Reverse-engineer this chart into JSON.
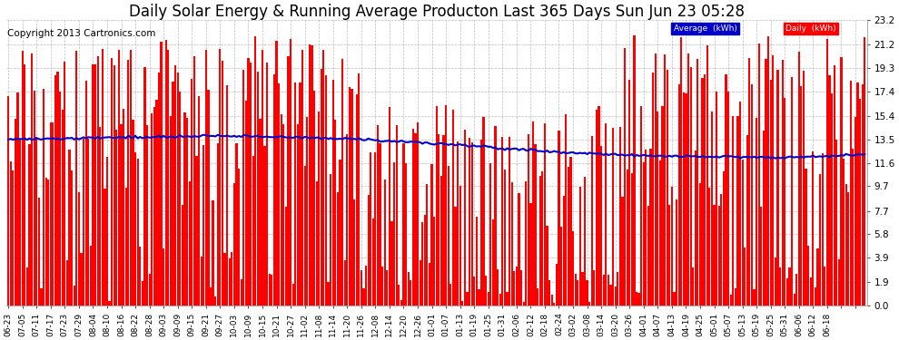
{
  "title": "Daily Solar Energy & Running Average Producton Last 365 Days Sun Jun 23 05:28",
  "copyright": "Copyright 2013 Cartronics.com",
  "legend_avg": "Average  (kWh)",
  "legend_daily": "Daily  (kWh)",
  "bar_color": "#ff0000",
  "avg_line_color": "#0000cd",
  "background_color": "#ffffff",
  "plot_bg_color": "#ffffff",
  "grid_color": "#aaaaaa",
  "ylim": [
    0.0,
    23.2
  ],
  "yticks": [
    0.0,
    1.9,
    3.9,
    5.8,
    7.7,
    9.7,
    11.6,
    13.5,
    15.4,
    17.4,
    19.3,
    21.2,
    23.2
  ],
  "title_fontsize": 12,
  "copyright_fontsize": 7.5,
  "tick_fontsize": 7.5,
  "n_days": 365,
  "x_tick_labels": [
    "06-23",
    "07-05",
    "07-11",
    "07-17",
    "07-23",
    "07-29",
    "08-04",
    "08-10",
    "08-16",
    "08-22",
    "08-28",
    "09-03",
    "09-09",
    "09-15",
    "09-21",
    "09-27",
    "10-03",
    "10-09",
    "10-15",
    "10-21",
    "10-27",
    "11-02",
    "11-08",
    "11-14",
    "11-20",
    "11-26",
    "12-08",
    "12-14",
    "12-20",
    "12-26",
    "01-01",
    "01-07",
    "01-13",
    "01-19",
    "01-25",
    "01-31",
    "02-06",
    "02-12",
    "02-18",
    "02-24",
    "03-02",
    "03-08",
    "03-14",
    "03-20",
    "03-26",
    "04-01",
    "04-07",
    "04-13",
    "04-19",
    "04-25",
    "05-01",
    "05-07",
    "05-13",
    "05-19",
    "05-25",
    "05-31",
    "06-06",
    "06-12",
    "06-18"
  ],
  "avg_control_points": [
    [
      0,
      13.5
    ],
    [
      30,
      13.6
    ],
    [
      60,
      13.7
    ],
    [
      90,
      13.8
    ],
    [
      120,
      13.7
    ],
    [
      150,
      13.5
    ],
    [
      180,
      13.2
    ],
    [
      210,
      12.8
    ],
    [
      240,
      12.4
    ],
    [
      270,
      12.2
    ],
    [
      300,
      12.1
    ],
    [
      330,
      12.0
    ],
    [
      364,
      12.3
    ]
  ]
}
